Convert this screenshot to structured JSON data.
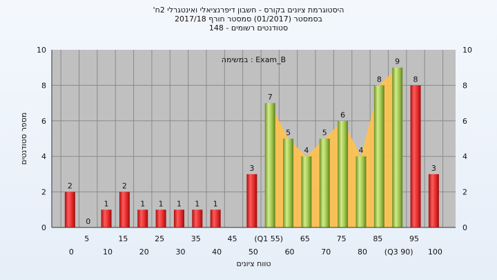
{
  "chart_data": {
    "type": "bar",
    "title": "'היסטוגרמת ציונים בקורס - חשבון דיפרנציאלי ואינטגרלי 2ח",
    "subtitle": "בסמסטר  (01/2017)  סמסטר חורף 2017/18",
    "subtitle2": "סטודנטים רשומים - 148",
    "xlabel": "טווח ציונים",
    "ylabel": "מספר סטודנטים",
    "annotation": "במשימה : Exam_B",
    "ylim": [
      0,
      10
    ],
    "yticks": [
      "0",
      "2",
      "4",
      "6",
      "8",
      "10"
    ],
    "x_ticks_row1": [
      "5",
      "15",
      "25",
      "35",
      "45",
      "(Q1 55)",
      "65",
      "75",
      "85",
      "95"
    ],
    "x_ticks_row2": [
      "0",
      "10",
      "20",
      "30",
      "40",
      "50",
      "60",
      "70",
      "80",
      "(Q3 90)",
      "100"
    ],
    "categories": [
      "0",
      "5",
      "10",
      "15",
      "20",
      "25",
      "30",
      "35",
      "40",
      "45",
      "50",
      "55",
      "60",
      "65",
      "70",
      "75",
      "80",
      "85",
      "90",
      "95",
      "100"
    ],
    "values": [
      2,
      0,
      1,
      2,
      1,
      1,
      1,
      1,
      1,
      0,
      3,
      7,
      5,
      4,
      5,
      6,
      4,
      8,
      9,
      8,
      3
    ],
    "value_labels": [
      "2",
      "0",
      "1",
      "2",
      "1",
      "1",
      "1",
      "1",
      "1",
      "",
      "3",
      "7",
      "5",
      "4",
      "5",
      "6",
      "4",
      "8",
      "9",
      "8",
      "3"
    ],
    "highlight_range": [
      "55",
      "90"
    ],
    "colors": {
      "below_q1": "#e32b2b",
      "within_iqr": "#9cc24a",
      "area": "#ffc24d",
      "plot_bg": "#c0c0c0",
      "grid": "#8a8a8a"
    },
    "grid": true
  }
}
